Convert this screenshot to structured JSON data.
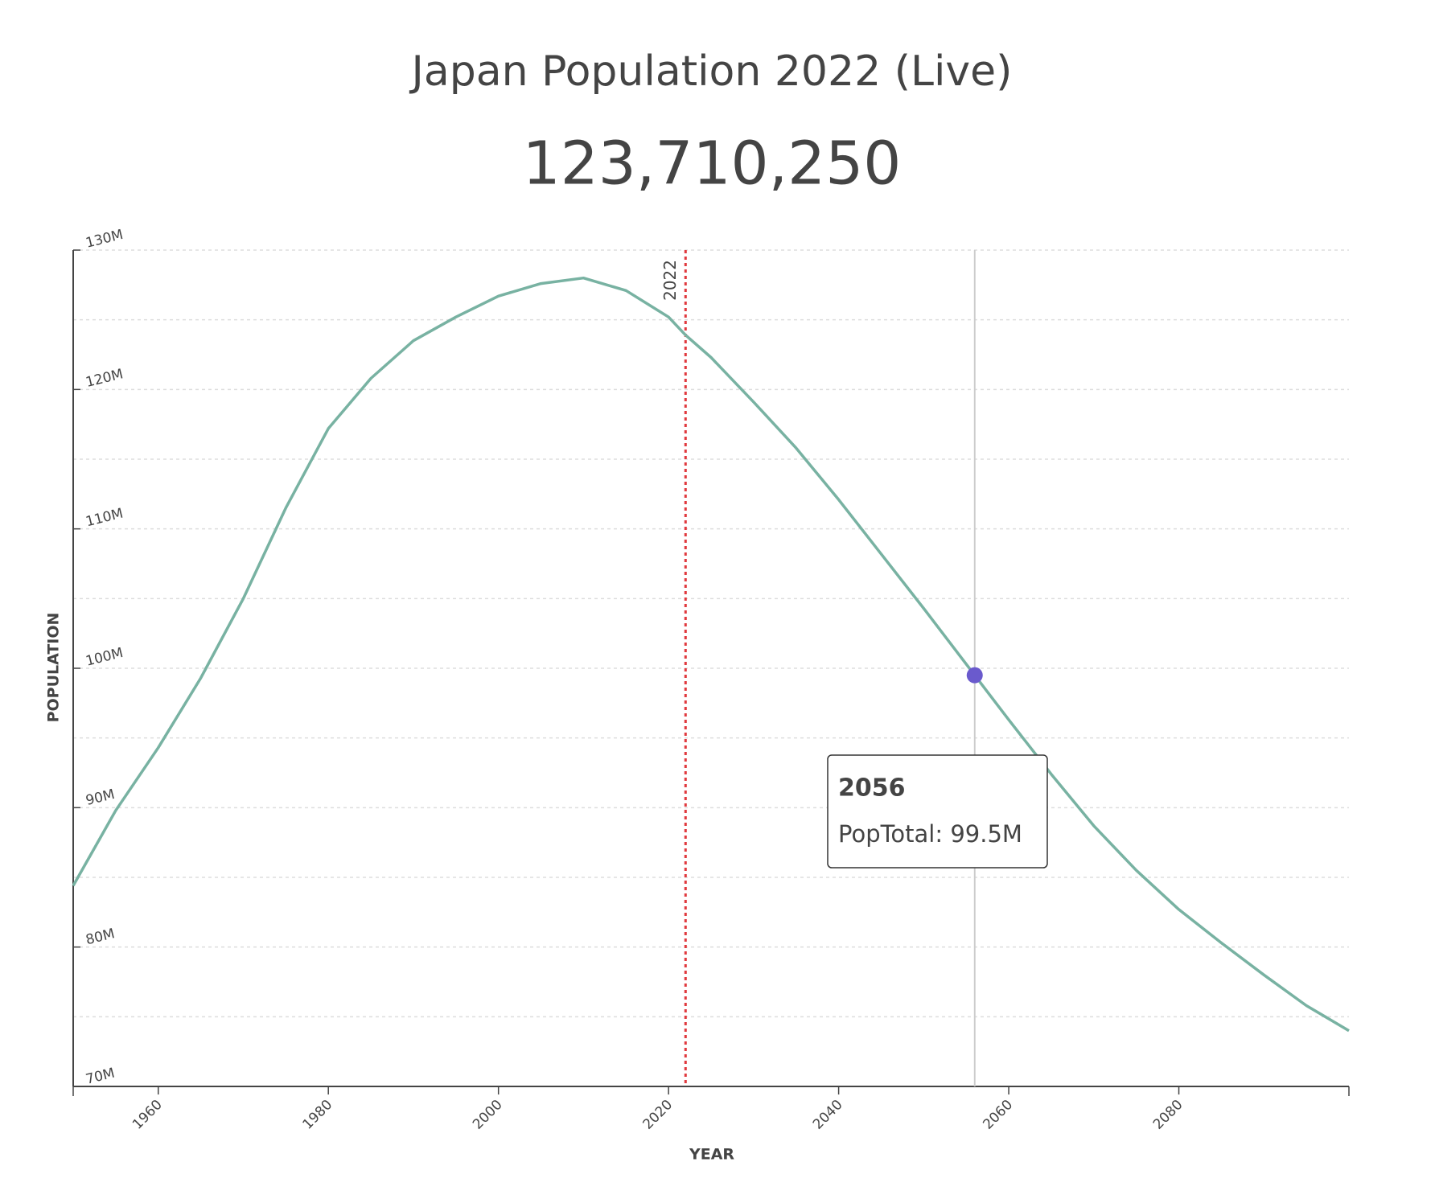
{
  "chart_data": {
    "type": "line",
    "title": "Japan Population 2022 (Live)",
    "live_count": "123,710,250",
    "xlabel": "YEAR",
    "ylabel": "POPULATION",
    "x": [
      1950,
      1955,
      1960,
      1965,
      1970,
      1975,
      1980,
      1985,
      1990,
      1995,
      2000,
      2005,
      2010,
      2015,
      2020,
      2022,
      2025,
      2030,
      2035,
      2040,
      2045,
      2050,
      2055,
      2056,
      2060,
      2065,
      2070,
      2075,
      2080,
      2085,
      2090,
      2095,
      2100
    ],
    "series": [
      {
        "name": "PopTotal",
        "color": "#78b2a2",
        "values": [
          84.4,
          89.8,
          94.3,
          99.3,
          105.0,
          111.5,
          117.2,
          120.8,
          123.5,
          125.2,
          126.7,
          127.6,
          128.0,
          127.1,
          125.2,
          123.9,
          122.3,
          119.1,
          115.8,
          112.1,
          108.2,
          104.3,
          100.3,
          99.5,
          96.3,
          92.4,
          88.7,
          85.5,
          82.7,
          80.3,
          78.0,
          75.8,
          74.0
        ]
      }
    ],
    "xlim": [
      1950,
      2100
    ],
    "xticks": [
      1960,
      1980,
      2000,
      2020,
      2040,
      2060,
      2080
    ],
    "ylim": [
      70,
      130
    ],
    "yticks": [
      {
        "value": 70,
        "label": "70M"
      },
      {
        "value": 80,
        "label": "80M"
      },
      {
        "value": 90,
        "label": "90M"
      },
      {
        "value": 100,
        "label": "100M"
      },
      {
        "value": 110,
        "label": "110M"
      },
      {
        "value": 120,
        "label": "120M"
      },
      {
        "value": 130,
        "label": "130M"
      }
    ],
    "ygrid": [
      75,
      85,
      95,
      105,
      115,
      125
    ],
    "grid": true,
    "reference_line": {
      "x": 2022,
      "label": 2022,
      "color": "#e0393e"
    },
    "tooltip": {
      "x": 2056,
      "value": 99.5,
      "label": "PopTotal: 99.5M",
      "color": "#6a5acd"
    }
  }
}
